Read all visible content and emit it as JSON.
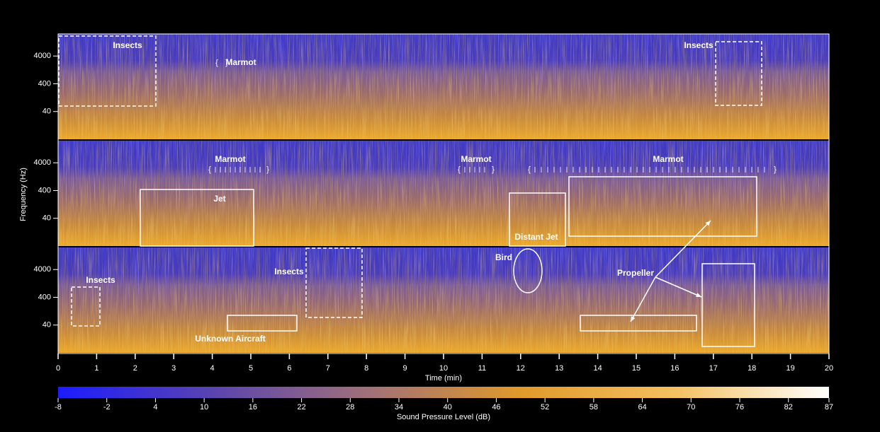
{
  "chart_data": {
    "type": "spectrogram",
    "y_label": "Frequency (Hz)",
    "x_label": "Time (min)",
    "xlim": [
      0,
      20
    ],
    "xticks": [
      0,
      1,
      2,
      3,
      4,
      5,
      6,
      7,
      8,
      9,
      10,
      11,
      12,
      13,
      14,
      15,
      16,
      17,
      18,
      19,
      20
    ],
    "ylim": [
      4,
      25000
    ],
    "yticks": [
      40,
      400,
      4000
    ],
    "log_y": true,
    "panels": 3,
    "annotations": [
      "Insects",
      "Insects",
      "Marmot",
      "Marmot",
      "Marmot",
      "Marmot",
      "Jet",
      "Distant Jet",
      "Insects",
      "Insects",
      "Bird",
      "Propeller",
      "Unknown Aircraft"
    ],
    "colorbar": {
      "label": "Sound Pressure Level (dB)",
      "lim": [
        -8,
        87
      ],
      "ticks": [
        -8,
        -2,
        4,
        10,
        16,
        22,
        28,
        34,
        40,
        46,
        52,
        58,
        64,
        70,
        76,
        82,
        87
      ],
      "colors": [
        "#1c1cff",
        "#5a44b0",
        "#a0707a",
        "#e09a2a",
        "#f4c060",
        "#ffffff"
      ]
    }
  }
}
